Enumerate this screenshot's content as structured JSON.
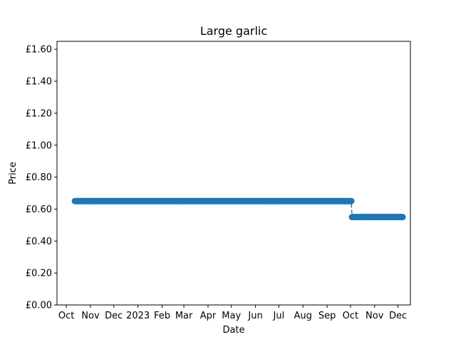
{
  "chart_data": {
    "type": "scatter",
    "title": "Large garlic",
    "xlabel": "Date",
    "ylabel": "Price",
    "x_type": "date",
    "xlim": [
      "2022-09-19",
      "2023-12-17"
    ],
    "ylim": [
      0,
      1.65
    ],
    "y_ticks": [
      0,
      0.2,
      0.4,
      0.6,
      0.8,
      1.0,
      1.2,
      1.4,
      1.6
    ],
    "y_tick_labels": [
      "£0.00",
      "£0.20",
      "£0.40",
      "£0.60",
      "£0.80",
      "£1.00",
      "£1.20",
      "£1.40",
      "£1.60"
    ],
    "x_ticks": [
      "2022-10-01",
      "2022-11-01",
      "2022-12-01",
      "2023-01-01",
      "2023-02-01",
      "2023-03-01",
      "2023-04-01",
      "2023-05-01",
      "2023-06-01",
      "2023-07-01",
      "2023-08-01",
      "2023-09-01",
      "2023-10-01",
      "2023-11-01",
      "2023-12-01"
    ],
    "x_tick_labels": [
      "Oct",
      "Nov",
      "Dec",
      "2023",
      "Feb",
      "Mar",
      "Apr",
      "May",
      "Jun",
      "Jul",
      "Aug",
      "Sep",
      "Oct",
      "Nov",
      "Dec"
    ],
    "grid": false,
    "colors": {
      "series": "#1f77b4"
    },
    "series": [
      {
        "x_start": "2022-10-12",
        "x_end": "2023-12-07",
        "x_step_days": 1,
        "segments": [
          {
            "from": "2022-10-12",
            "to": "2023-10-02",
            "value": 0.65
          },
          {
            "from": "2023-10-03",
            "to": "2023-12-07",
            "value": 0.55
          }
        ]
      }
    ]
  }
}
